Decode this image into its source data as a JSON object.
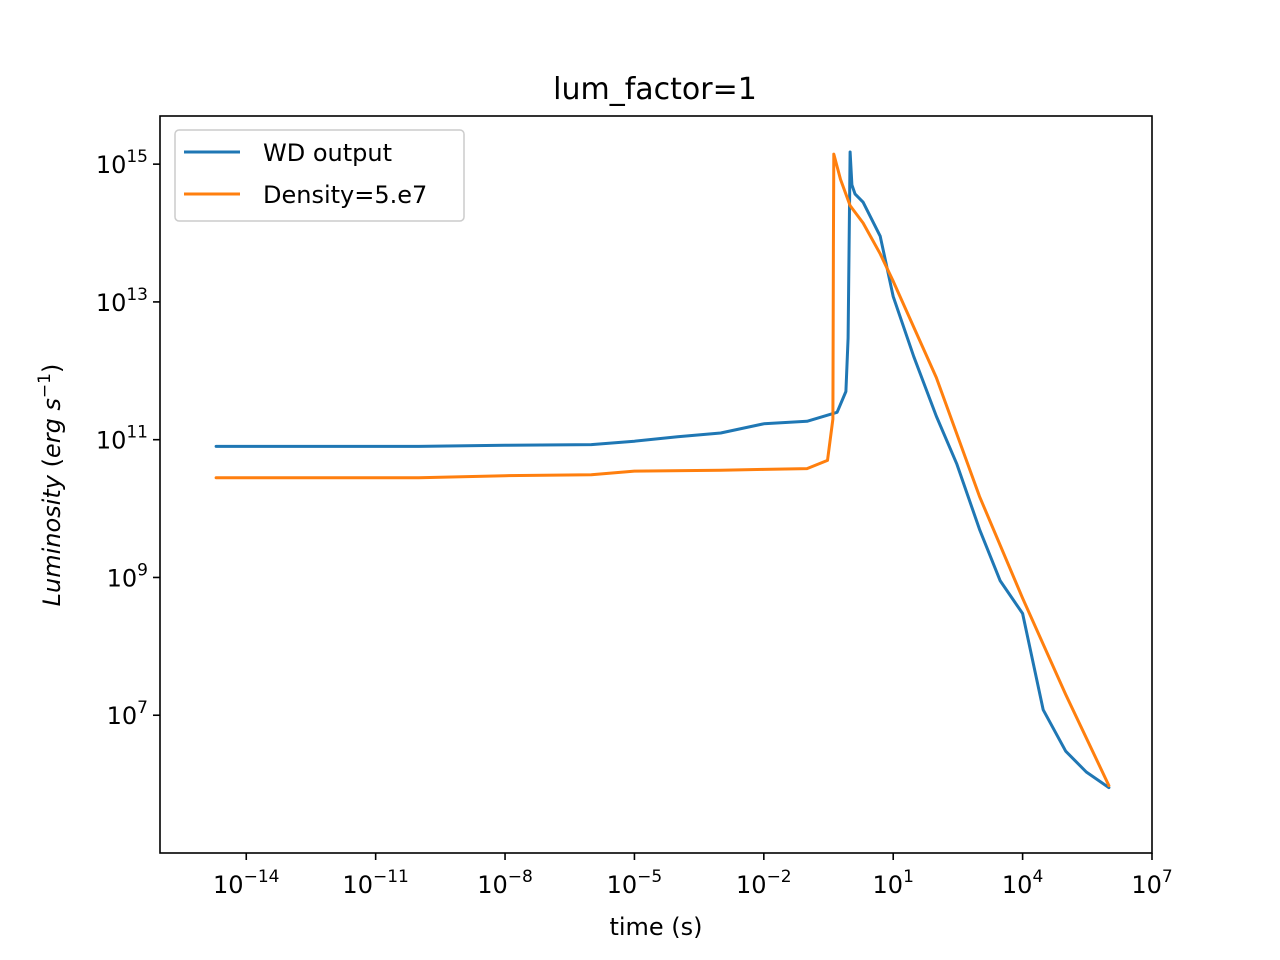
{
  "chart_data": {
    "type": "line",
    "title": "lum_factor=1",
    "xlabel": "time (s)",
    "ylabel": "Luminosity (erg s⁻¹)",
    "x_scale": "log",
    "y_scale": "log",
    "xlim": [
      1e-16,
      10000000.0
    ],
    "ylim": [
      100000.0,
      5000000000000000.0
    ],
    "x_ticks": [
      {
        "value": 1e-14,
        "base": "10",
        "exp": "−14"
      },
      {
        "value": 1e-11,
        "base": "10",
        "exp": "−11"
      },
      {
        "value": 1e-08,
        "base": "10",
        "exp": "−8"
      },
      {
        "value": 1e-05,
        "base": "10",
        "exp": "−5"
      },
      {
        "value": 0.01,
        "base": "10",
        "exp": "−2"
      },
      {
        "value": 10.0,
        "base": "10",
        "exp": "1"
      },
      {
        "value": 10000.0,
        "base": "10",
        "exp": "4"
      },
      {
        "value": 10000000.0,
        "base": "10",
        "exp": "7"
      }
    ],
    "y_ticks": [
      {
        "value": 10000000.0,
        "base": "10",
        "exp": "7"
      },
      {
        "value": 1000000000.0,
        "base": "10",
        "exp": "9"
      },
      {
        "value": 100000000000.0,
        "base": "10",
        "exp": "11"
      },
      {
        "value": 10000000000000.0,
        "base": "10",
        "exp": "13"
      },
      {
        "value": 1000000000000000.0,
        "base": "10",
        "exp": "15"
      }
    ],
    "grid": false,
    "legend_position": "top-left",
    "series": [
      {
        "name": "WD output",
        "color": "#1f77b4",
        "x": [
          2e-15,
          1e-12,
          1e-10,
          1e-08,
          1e-06,
          1e-05,
          0.0001,
          0.001,
          0.01,
          0.1,
          0.5,
          0.8,
          0.9,
          1.0,
          1.1,
          1.3,
          2,
          5,
          10.0,
          30.0,
          100.0,
          300.0,
          1000.0,
          3000.0,
          10000.0,
          30000.0,
          100000.0,
          300000.0,
          1000000.0
        ],
        "y": [
          80000000000.0,
          80000000000.0,
          80000000000.0,
          83000000000.0,
          85000000000.0,
          95000000000.0,
          110000000000.0,
          125000000000.0,
          170000000000.0,
          185000000000.0,
          250000000000.0,
          500000000000.0,
          3000000000000.0,
          1500000000000000.0,
          500000000000000.0,
          370000000000000.0,
          280000000000000.0,
          90000000000000.0,
          12000000000000.0,
          1600000000000.0,
          220000000000.0,
          44000000000.0,
          5000000000.0,
          900000000.0,
          300000000.0,
          12000000.0,
          3000000.0,
          1500000.0,
          890000.0
        ]
      },
      {
        "name": "Density=5.e7",
        "color": "#ff7f0e",
        "x": [
          2e-15,
          1e-12,
          1e-10,
          1e-08,
          1e-06,
          1e-05,
          0.001,
          0.01,
          0.1,
          0.3,
          0.4,
          0.41,
          0.42,
          0.6,
          1,
          2,
          5,
          10.0,
          100.0,
          1000.0,
          10000.0,
          100000.0,
          1000000.0
        ],
        "y": [
          28000000000.0,
          28000000000.0,
          28000000000.0,
          30000000000.0,
          31000000000.0,
          35000000000.0,
          36000000000.0,
          37000000000.0,
          38000000000.0,
          50000000000.0,
          200000000000.0,
          60000000000000.0,
          1400000000000000.0,
          600000000000000.0,
          250000000000000.0,
          140000000000000.0,
          50000000000000.0,
          20000000000000.0,
          800000000000.0,
          15000000000.0,
          500000000.0,
          20000000.0,
          950000.0
        ]
      }
    ]
  }
}
